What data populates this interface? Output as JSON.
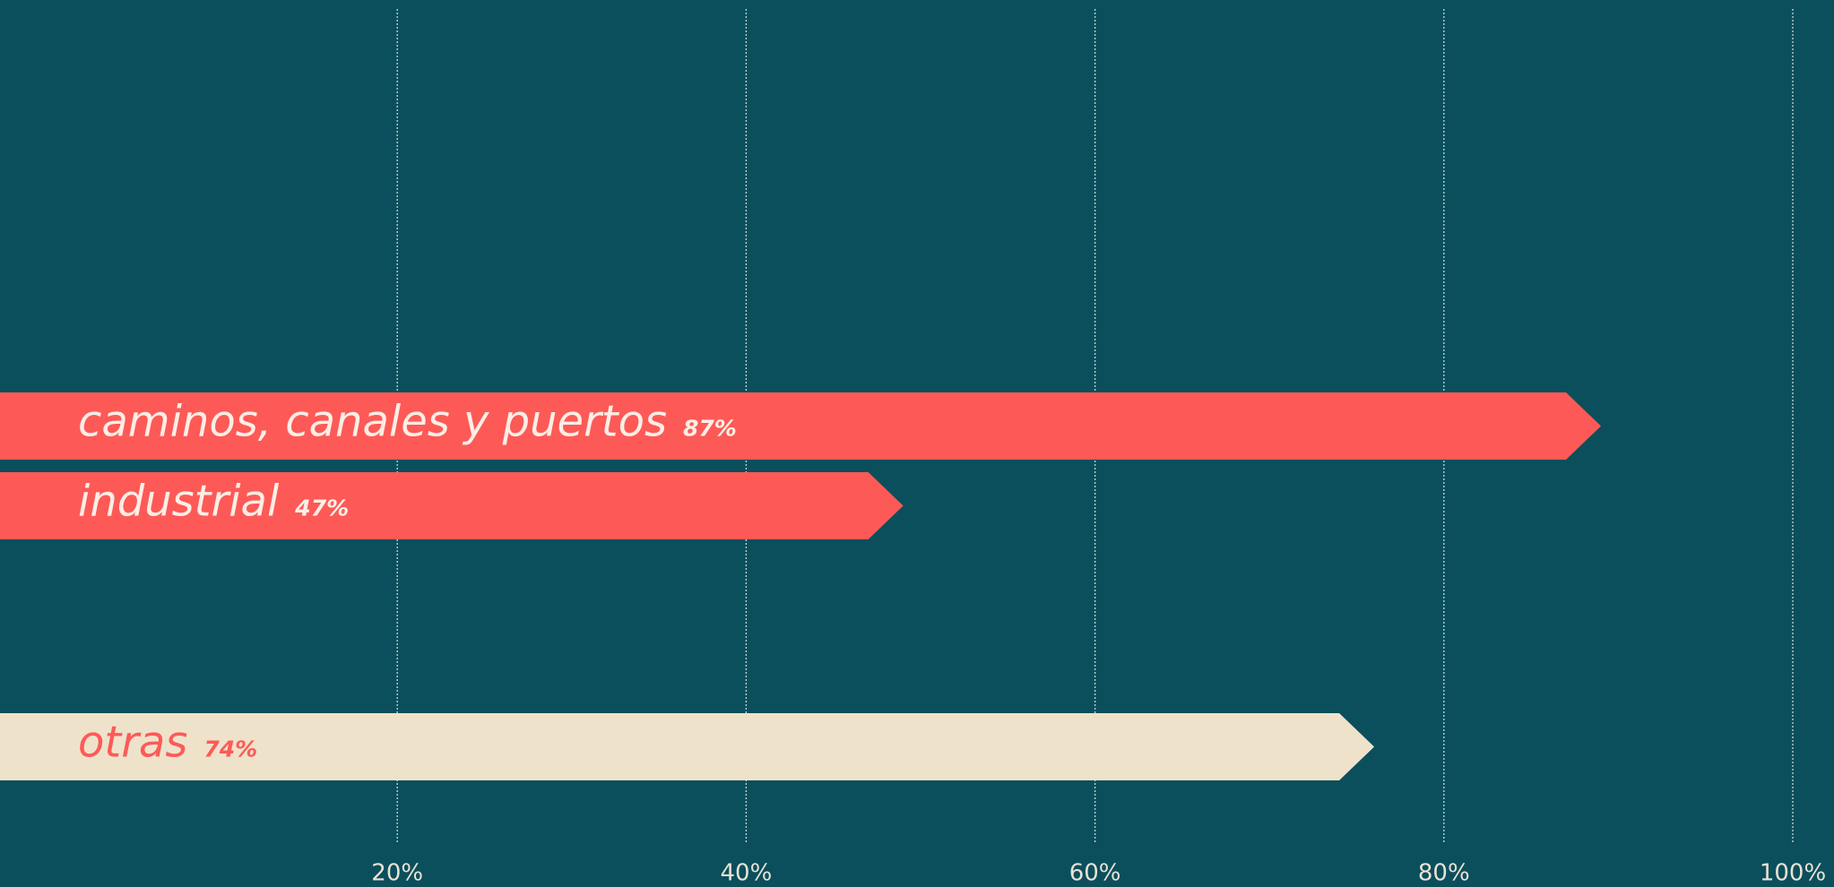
{
  "chart_data": {
    "type": "bar",
    "orientation": "horizontal",
    "categories": [
      "caminos, canales y puertos",
      "industrial",
      "otras"
    ],
    "values": [
      87,
      47,
      74
    ],
    "value_labels": [
      "87%",
      "47%",
      "74%"
    ],
    "colors": [
      "#fd5a57",
      "#fd5a57",
      "#efe2cb"
    ],
    "label_colors": [
      "#fdeee6",
      "#fdeee6",
      "#fd5a57"
    ],
    "background": "#0b4f5c",
    "xlim": [
      0,
      100
    ],
    "xticks": [
      {
        "value": 20,
        "label": "20%"
      },
      {
        "value": 40,
        "label": "40%"
      },
      {
        "value": 60,
        "label": "60%"
      },
      {
        "value": 80,
        "label": "80%"
      },
      {
        "value": 100,
        "label": "100%"
      }
    ],
    "grid": true
  }
}
